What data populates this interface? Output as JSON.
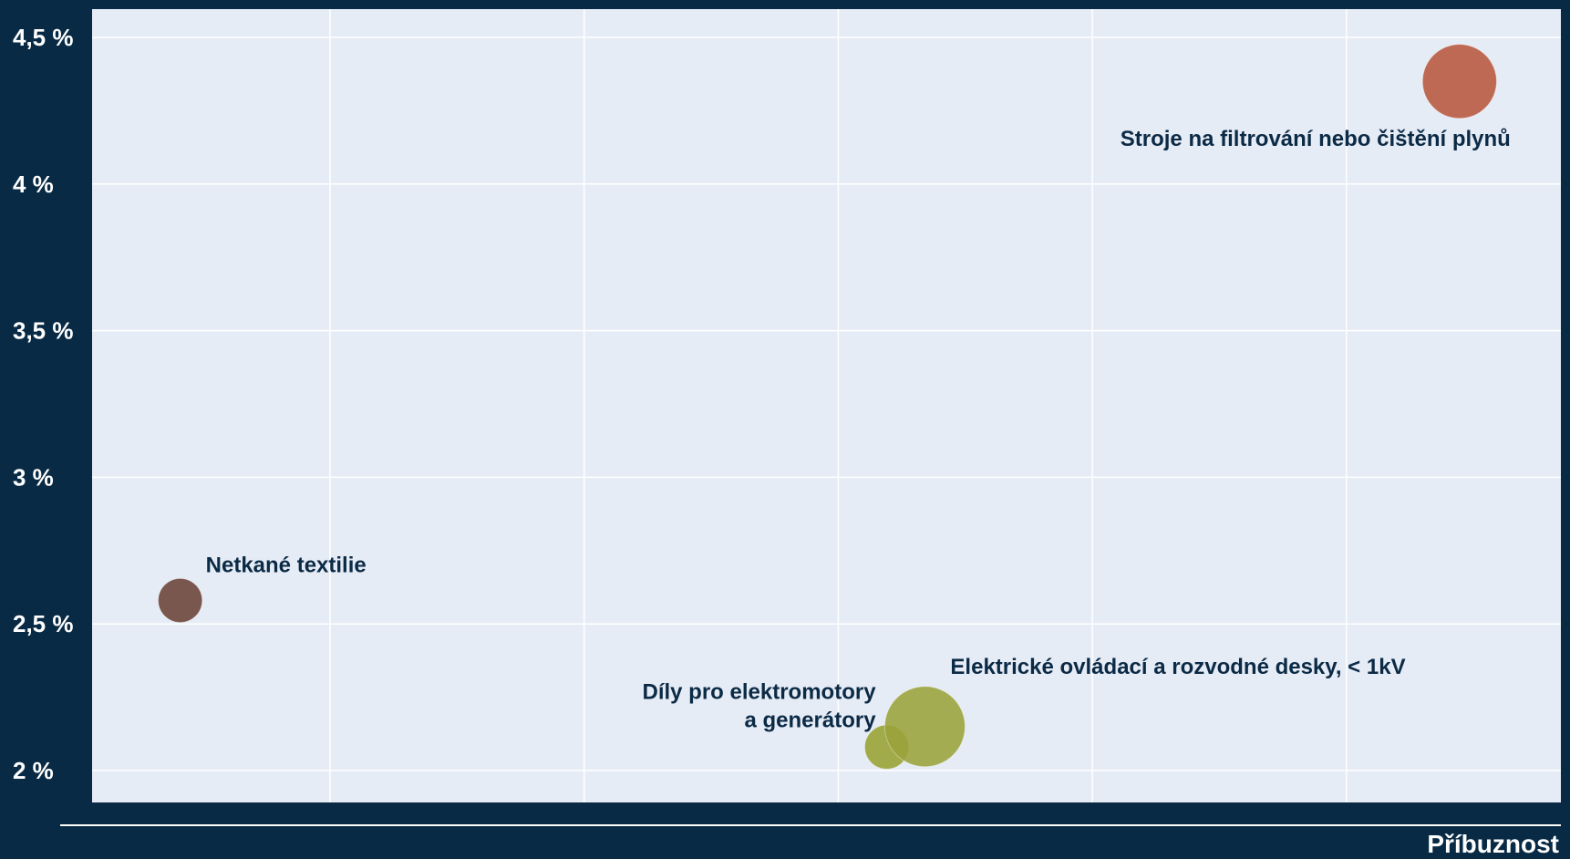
{
  "chart_data": {
    "type": "scatter",
    "subtype": "bubble",
    "title": "",
    "xlabel": "Příbuznost",
    "ylabel": "",
    "ylim": [
      1.9,
      4.6
    ],
    "xlim": [
      0,
      1
    ],
    "yticks": [
      2,
      2.5,
      3,
      3.5,
      4,
      4.5
    ],
    "ytick_labels": [
      "2 %",
      "2,5 %",
      "3 %",
      "3,5 %",
      "4 %",
      "4,5 %"
    ],
    "xticks": [
      0.162,
      0.335,
      0.508,
      0.681,
      0.854
    ],
    "grid": true,
    "colors": {
      "background": "#082a44",
      "plot_area": "#e6ecf6",
      "grid": "#ffffff",
      "label_text": "#0b2a45",
      "axis_text": "#ffffff"
    },
    "points": [
      {
        "label": "Netkané textilie",
        "x": 0.06,
        "y": 2.58,
        "size": 0.3,
        "color": "#6a4137"
      },
      {
        "label": "Díly pro elektromotory a generátory",
        "label_lines": [
          "Díly pro elektromotory",
          "a generátory"
        ],
        "x": 0.541,
        "y": 2.08,
        "size": 0.3,
        "color": "#97a232"
      },
      {
        "label": "Elektrické ovládací a rozvodné desky, < 1kV",
        "x": 0.567,
        "y": 2.15,
        "size": 1.0,
        "color": "#9aa33a"
      },
      {
        "label": "Stroje na filtrování nebo čištění plynů",
        "x": 0.931,
        "y": 4.35,
        "size": 0.85,
        "color": "#b8573c"
      }
    ]
  }
}
